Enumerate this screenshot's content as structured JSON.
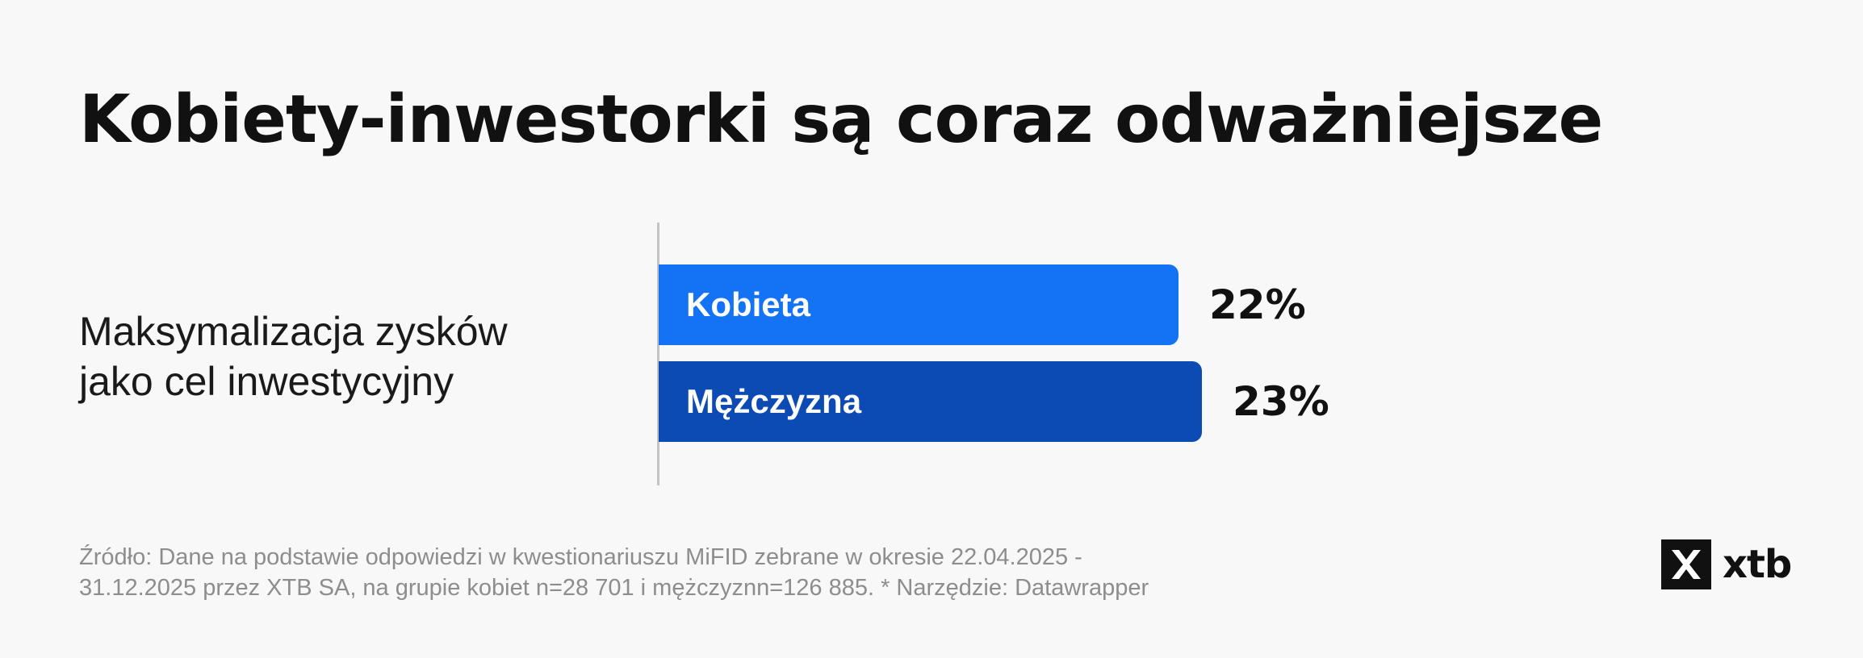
{
  "title": "Kobiety-inwestorki są coraz odważniejsze",
  "chart_data": {
    "type": "bar",
    "orientation": "horizontal",
    "category": [
      "Maksymalizacja zysków",
      "jako cel inwestycyjny"
    ],
    "series": [
      {
        "name": "Kobieta",
        "value": 22,
        "value_label": "22%",
        "color": "#1473f5"
      },
      {
        "name": "Mężczyzna",
        "value": 23,
        "value_label": "23%",
        "color": "#0b4bb3"
      }
    ],
    "value_unit": "%",
    "xlim": [
      0,
      35
    ],
    "grid": false,
    "legend": "none"
  },
  "source": {
    "line1": "Źródło: Dane na podstawie odpowiedzi w kwestionariuszu MiFID zebrane w okresie 22.04.2025 -",
    "line2": "31.12.2025 przez XTB SA, na grupie kobiet n=28 701 i mężczyznn=126 885. * Narzędzie: Datawrapper"
  },
  "logo": {
    "text": "xtb",
    "icon": "xtb-logo-icon"
  }
}
